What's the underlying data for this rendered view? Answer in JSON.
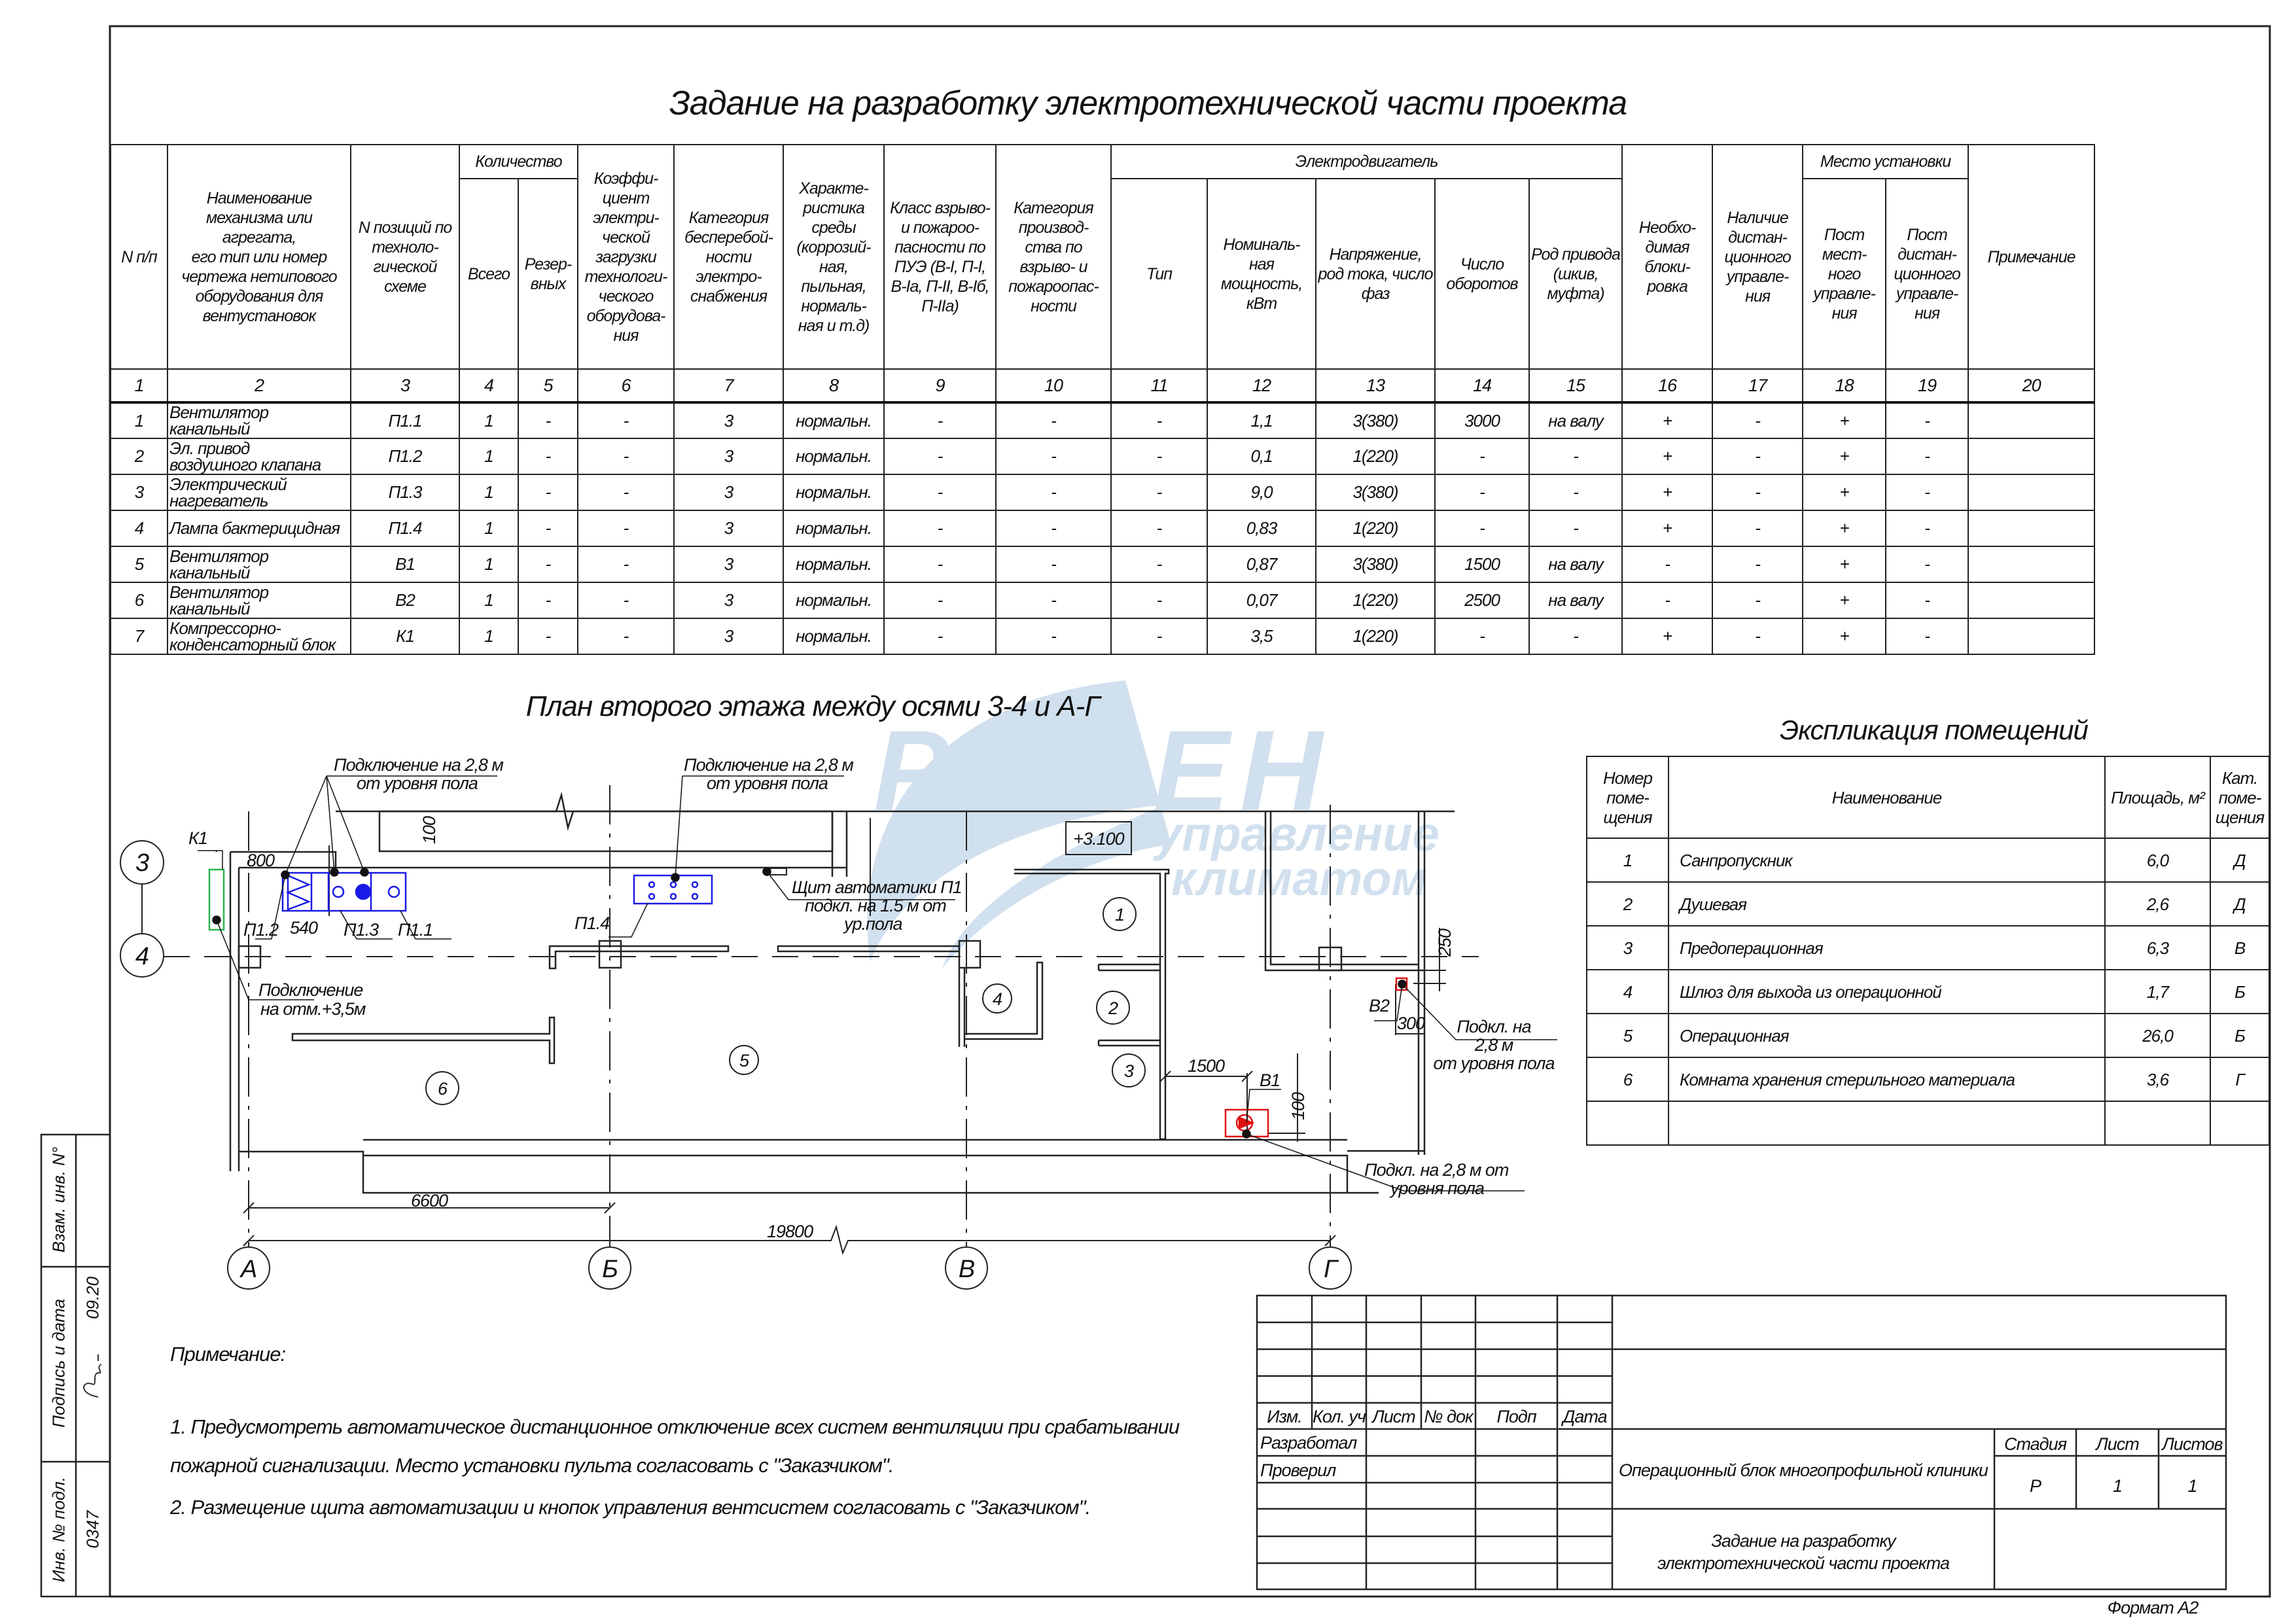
{
  "title": "Задание на разработку электротехнической части проекта",
  "main_table": {
    "group_headers": {
      "quantity": "Количество",
      "motor": "Электродвигатель",
      "location": "Место установки"
    },
    "headers": {
      "c1": "N п/п",
      "c2": "Наименование\nмеханизма или\nагрегата,\nего тип или номер\nчертежа нетипового\nоборудования для\nвентустановок",
      "c3": "N позиций по\nтехноло-\nгической\nсхеме",
      "c4": "Всего",
      "c5": "Резер-\nвных",
      "c6": "Коэффи-\nциент\nэлектри-\nческой\nзагрузки\nтехнологи-\nческого\nоборудова-\nния",
      "c7": "Категория\nбесперебой-\nности\nэлектро-\nснабжения",
      "c8": "Характе-\nристика\nсреды\n(коррозий-\nная, пыльная,\nнормаль-\nная и т.д)",
      "c9": "Класс взрыво-\nи пожароо-\nпасности по\nПУЭ (В-I, П-I,\nВ-Iа, П-II, В-Iб,\nП-IIа)",
      "c10": "Категория\nпроизвод-\nства по\nвзрыво- и\nпожароопас-\nности",
      "c11": "Тип",
      "c12": "Номиналь-\nная\nмощность,\nкВт",
      "c13": "Напряжение,\nрод тока, число\nфаз",
      "c14": "Число\nоборотов",
      "c15": "Род привода\n(шкив,\nмуфта)",
      "c16": "Необхо-\nдимая\nблоки-\nровка",
      "c17": "Наличие\nдистан-\nционного\nуправле-\nния",
      "c18": "Пост\nмест-\nного\nуправле-\nния",
      "c19": "Пост\nдистан-\nционного\nуправле-\nния",
      "c20": "Примечание"
    },
    "column_numbers": [
      "1",
      "2",
      "3",
      "4",
      "5",
      "6",
      "7",
      "8",
      "9",
      "10",
      "11",
      "12",
      "13",
      "14",
      "15",
      "16",
      "17",
      "18",
      "19",
      "20"
    ],
    "rows": [
      [
        "1",
        "Вентилятор\nканальный",
        "П1.1",
        "1",
        "-",
        "-",
        "3",
        "нормальн.",
        "-",
        "-",
        "-",
        "1,1",
        "3(380)",
        "3000",
        "на валу",
        "+",
        "-",
        "+",
        "-",
        ""
      ],
      [
        "2",
        "Эл. привод\nвоздушного клапана",
        "П1.2",
        "1",
        "-",
        "-",
        "3",
        "нормальн.",
        "-",
        "-",
        "-",
        "0,1",
        "1(220)",
        "-",
        "-",
        "+",
        "-",
        "+",
        "-",
        ""
      ],
      [
        "3",
        "Электрический\nнагреватель",
        "П1.3",
        "1",
        "-",
        "-",
        "3",
        "нормальн.",
        "-",
        "-",
        "-",
        "9,0",
        "3(380)",
        "-",
        "-",
        "+",
        "-",
        "+",
        "-",
        ""
      ],
      [
        "4",
        "Лампа бактерицидная",
        "П1.4",
        "1",
        "-",
        "-",
        "3",
        "нормальн.",
        "-",
        "-",
        "-",
        "0,83",
        "1(220)",
        "-",
        "-",
        "+",
        "-",
        "+",
        "-",
        ""
      ],
      [
        "5",
        "Вентилятор\nканальный",
        "В1",
        "1",
        "-",
        "-",
        "3",
        "нормальн.",
        "-",
        "-",
        "-",
        "0,87",
        "3(380)",
        "1500",
        "на валу",
        "-",
        "-",
        "+",
        "-",
        ""
      ],
      [
        "6",
        "Вентилятор\nканальный",
        "В2",
        "1",
        "-",
        "-",
        "3",
        "нормальн.",
        "-",
        "-",
        "-",
        "0,07",
        "1(220)",
        "2500",
        "на валу",
        "-",
        "-",
        "+",
        "-",
        ""
      ],
      [
        "7",
        "Компрессорно-\nконденсаторный блок",
        "К1",
        "1",
        "-",
        "-",
        "3",
        "нормальн.",
        "-",
        "-",
        "-",
        "3,5",
        "1(220)",
        "-",
        "-",
        "+",
        "-",
        "+",
        "-",
        ""
      ]
    ]
  },
  "plan": {
    "title": "План второго этажа между осями 3-4 и А-Г",
    "axes": {
      "row3": "3",
      "row4": "4",
      "a": "А",
      "b": "Б",
      "v": "В",
      "g": "Г"
    },
    "rooms": [
      "1",
      "2",
      "3",
      "4",
      "5",
      "6"
    ],
    "elevation": "+3.100",
    "labels": {
      "conn1_l1": "Подключение на 2,8 м",
      "conn1_l2": "от уровня пола",
      "conn2_l1": "Подключение на 2,8 м",
      "conn2_l2": "от уровня пола",
      "k1": "К1",
      "p1_1": "П1.1",
      "p1_2": "П1.2",
      "p1_3": "П1.3",
      "p1_4": "П1.4",
      "panel_l1": "Щит автоматики П1",
      "panel_l2": "подкл. на 1.5 м от",
      "panel_l3": "ур.пола",
      "k1conn_l1": "Подключение",
      "k1conn_l2": "на отм.+3,5м",
      "b1": "В1",
      "b2": "В2",
      "b2conn_l1": "Подкл. на",
      "b2conn_l2": "2,8 м",
      "b2conn_l3": "от уровня пола",
      "b1conn_l1": "Подкл. на 2,8 м от",
      "b1conn_l2": "уровня пола"
    },
    "dimensions": {
      "d800": "800",
      "d540": "540",
      "d100a": "100",
      "d100b": "100",
      "d1500": "1500",
      "d250": "250",
      "d300": "300",
      "d6600": "6600",
      "d19800": "19800"
    },
    "equipment_colors": {
      "supply_unit": "#1a1ae6",
      "exhaust_fans": "#e01010",
      "condenser": "#2bb24c"
    }
  },
  "watermark": {
    "brand": "РОВЕН",
    "line1": "управление",
    "line2": "климатом",
    "color": "#c9dbec"
  },
  "explication": {
    "title": "Экспликация помещений",
    "headers": [
      "Номер\nпоме-\nщения",
      "Наименование",
      "Площадь, м²",
      "Кат.\nпоме-\nщения"
    ],
    "rows": [
      [
        "1",
        "Санпропускник",
        "6,0",
        "Д"
      ],
      [
        "2",
        "Душевая",
        "2,6",
        "Д"
      ],
      [
        "3",
        "Предоперационная",
        "6,3",
        "В"
      ],
      [
        "4",
        "Шлюз для выхода из операционной",
        "1,7",
        "Б"
      ],
      [
        "5",
        "Операционная",
        "26,0",
        "Б"
      ],
      [
        "6",
        "Комната хранения стерильного материала",
        "3,6",
        "Г"
      ],
      [
        "",
        "",
        "",
        ""
      ]
    ]
  },
  "notes": {
    "heading": "Примечание:",
    "lines": [
      "1. Предусмотреть автоматическое дистанционное отключение всех систем вентиляции при срабатывании",
      "пожарной   сигнализации. Место установки пульта согласовать с \"Заказчиком\".",
      "2. Размещение щита автоматизации и кнопок управления вентсистем согласовать с \"Заказчиком\"."
    ]
  },
  "title_block": {
    "col_headers": [
      "Изм.",
      "Кол. уч",
      "Лист",
      "№ док",
      "Подп",
      "Дата"
    ],
    "developed": "Разработал",
    "checked": "Проверил",
    "project": "Операционный блок многопрофильной клиники",
    "sheet_title_l1": "Задание на разработку",
    "sheet_title_l2": "электротехнической части проекта",
    "stage_label": "Стадия",
    "sheet_label": "Лист",
    "sheets_label": "Листов",
    "stage": "Р",
    "sheet": "1",
    "sheets": "1",
    "format": "Формат А2"
  },
  "side_stamp": {
    "replace_inv": "Взам. инв. N°",
    "sign_date": "Подпись и дата",
    "date": "09.20",
    "orig_inv": "Инв. № подл.",
    "orig_inv_value": "0347"
  }
}
